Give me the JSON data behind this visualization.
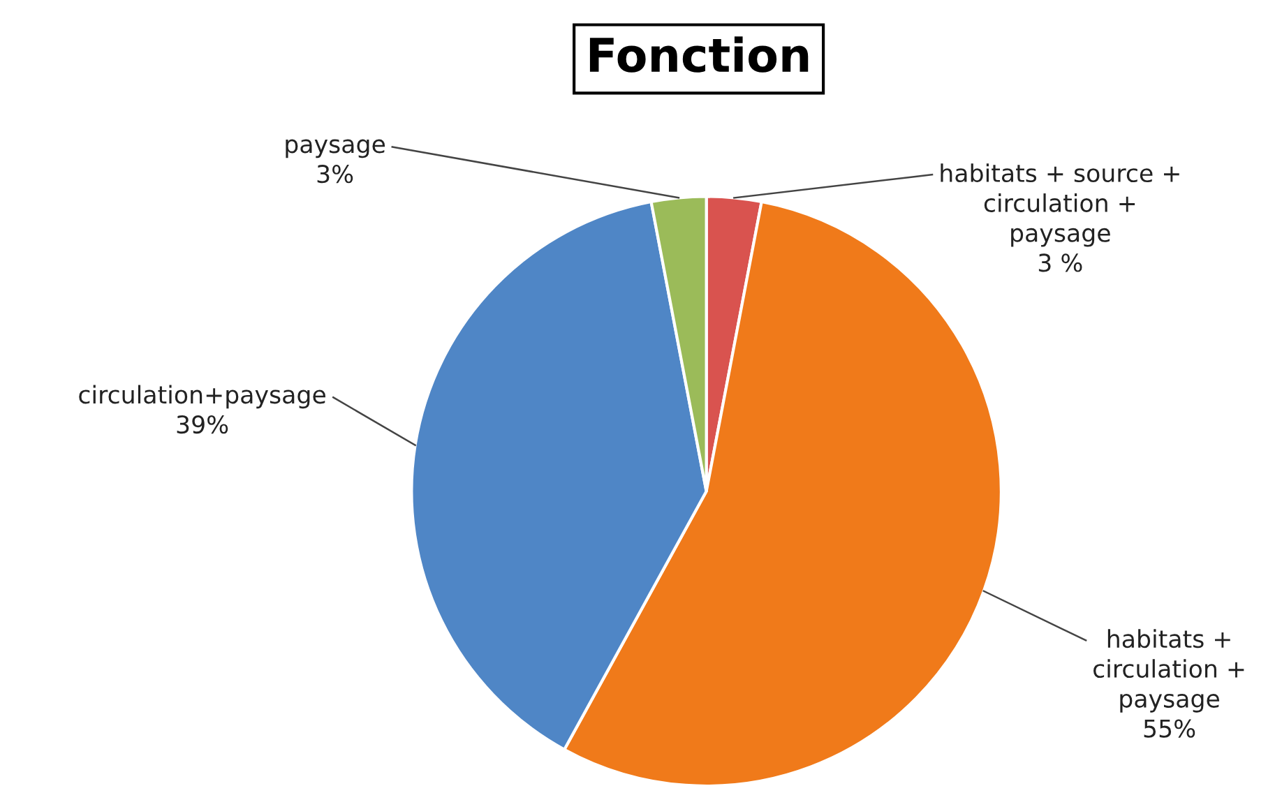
{
  "chart_data": {
    "type": "pie",
    "title": "Fonction",
    "categories": [
      "habitats + source +\ncirculation +\npaysage",
      "habitats +\ncirculation +\npaysage",
      "circulation+paysage",
      "paysage"
    ],
    "values": [
      3,
      55,
      39,
      3
    ],
    "value_labels": [
      "3 %",
      "55%",
      "39%",
      "3%"
    ],
    "colors": [
      "#d9534f",
      "#f07a1a",
      "#4f86c6",
      "#9bbb59"
    ],
    "legend": false
  }
}
